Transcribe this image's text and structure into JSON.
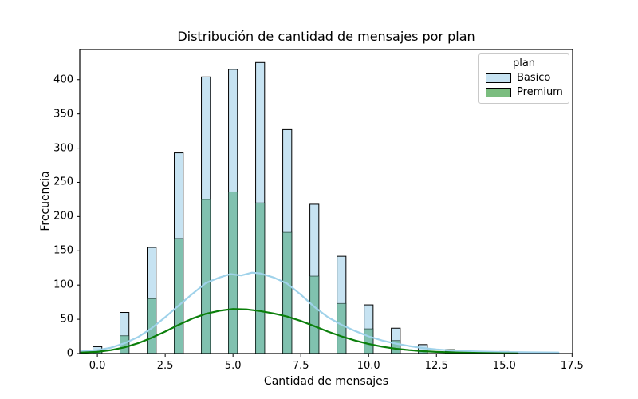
{
  "chart_data": {
    "type": "histogram_with_kde_overlay",
    "title": "Distribución de cantidad de mensajes por plan",
    "xlabel": "Cantidad de mensajes",
    "ylabel": "Frecuencia",
    "legend": {
      "title": "plan",
      "position": "upper right"
    },
    "grid": false,
    "xlim": [
      -0.65,
      17.52
    ],
    "ylim": [
      0,
      444
    ],
    "x_ticks": {
      "values": [
        0,
        2.5,
        5,
        7.5,
        10,
        12.5,
        15,
        17.5
      ],
      "labels": [
        "0.0",
        "2.5",
        "5.0",
        "7.5",
        "10.0",
        "12.5",
        "15.0",
        "17.5"
      ]
    },
    "y_ticks": {
      "values": [
        0,
        50,
        100,
        150,
        200,
        250,
        300,
        350,
        400
      ],
      "labels": [
        "0",
        "50",
        "100",
        "150",
        "200",
        "250",
        "300",
        "350",
        "400"
      ]
    },
    "bar_centers": [
      0,
      1,
      2,
      3,
      4,
      5,
      6,
      7,
      8,
      9,
      10,
      11,
      12,
      13,
      14,
      15
    ],
    "bar_width_units": 0.33,
    "series": [
      {
        "name": "Basico",
        "bar_values": [
          10,
          60,
          155,
          293,
          404,
          415,
          425,
          327,
          218,
          142,
          71,
          37,
          13,
          3,
          2,
          3
        ],
        "kde": [
          [
            -0.6,
            3
          ],
          [
            0,
            5
          ],
          [
            0.5,
            8.5
          ],
          [
            1,
            15
          ],
          [
            1.5,
            24
          ],
          [
            2,
            37
          ],
          [
            2.5,
            53
          ],
          [
            3,
            70
          ],
          [
            3.5,
            87
          ],
          [
            4,
            103
          ],
          [
            4.5,
            111
          ],
          [
            4.9,
            116
          ],
          [
            5.3,
            114
          ],
          [
            5.7,
            118
          ],
          [
            6,
            117
          ],
          [
            6.5,
            111
          ],
          [
            7,
            102
          ],
          [
            7.5,
            86
          ],
          [
            8,
            68
          ],
          [
            8.5,
            53
          ],
          [
            9,
            42
          ],
          [
            9.5,
            33
          ],
          [
            10,
            25
          ],
          [
            10.5,
            19
          ],
          [
            11,
            14.5
          ],
          [
            11.5,
            11
          ],
          [
            12,
            8
          ],
          [
            12.5,
            6
          ],
          [
            13,
            4.5
          ],
          [
            13.5,
            3.7
          ],
          [
            14,
            3
          ],
          [
            15,
            2.2
          ],
          [
            16,
            1.8
          ],
          [
            17,
            1.5
          ]
        ],
        "bar_fill": "#c7e3f2",
        "line_color": "#9fd2ea"
      },
      {
        "name": "Premium",
        "bar_values": [
          4,
          26,
          80,
          168,
          225,
          236,
          220,
          177,
          113,
          73,
          36,
          19,
          5,
          6,
          1,
          1
        ],
        "kde": [
          [
            -0.6,
            1.5
          ],
          [
            0,
            2.5
          ],
          [
            0.5,
            5
          ],
          [
            1,
            9
          ],
          [
            1.5,
            15
          ],
          [
            2,
            23
          ],
          [
            2.5,
            32
          ],
          [
            3,
            42
          ],
          [
            3.5,
            51
          ],
          [
            4,
            58
          ],
          [
            4.5,
            62.5
          ],
          [
            5,
            65
          ],
          [
            5.5,
            64.5
          ],
          [
            6,
            62
          ],
          [
            6.5,
            58.5
          ],
          [
            7,
            54
          ],
          [
            7.5,
            47.5
          ],
          [
            8,
            40
          ],
          [
            8.5,
            32
          ],
          [
            9,
            25
          ],
          [
            9.5,
            19
          ],
          [
            10,
            14
          ],
          [
            10.5,
            10
          ],
          [
            11,
            7
          ],
          [
            11.5,
            5
          ],
          [
            12,
            3.5
          ],
          [
            12.5,
            2.5
          ],
          [
            13,
            1.8
          ],
          [
            13.5,
            1.3
          ],
          [
            14,
            0.9
          ],
          [
            14.5,
            0.6
          ],
          [
            15,
            0.4
          ],
          [
            15.5,
            0.25
          ]
        ],
        "bar_fill": "#7bbd7f",
        "overlap_fill": "#80c1af",
        "line_color": "#0b7f0b"
      }
    ],
    "colors": {
      "basico_bar": "#c7e3f2",
      "premium_bar": "#7bbd7f",
      "overlap_bar": "#80c1af",
      "basico_kde_line": "#9fd2ea",
      "premium_kde_line": "#0b7f0b",
      "bar_edge": "#000000"
    }
  }
}
